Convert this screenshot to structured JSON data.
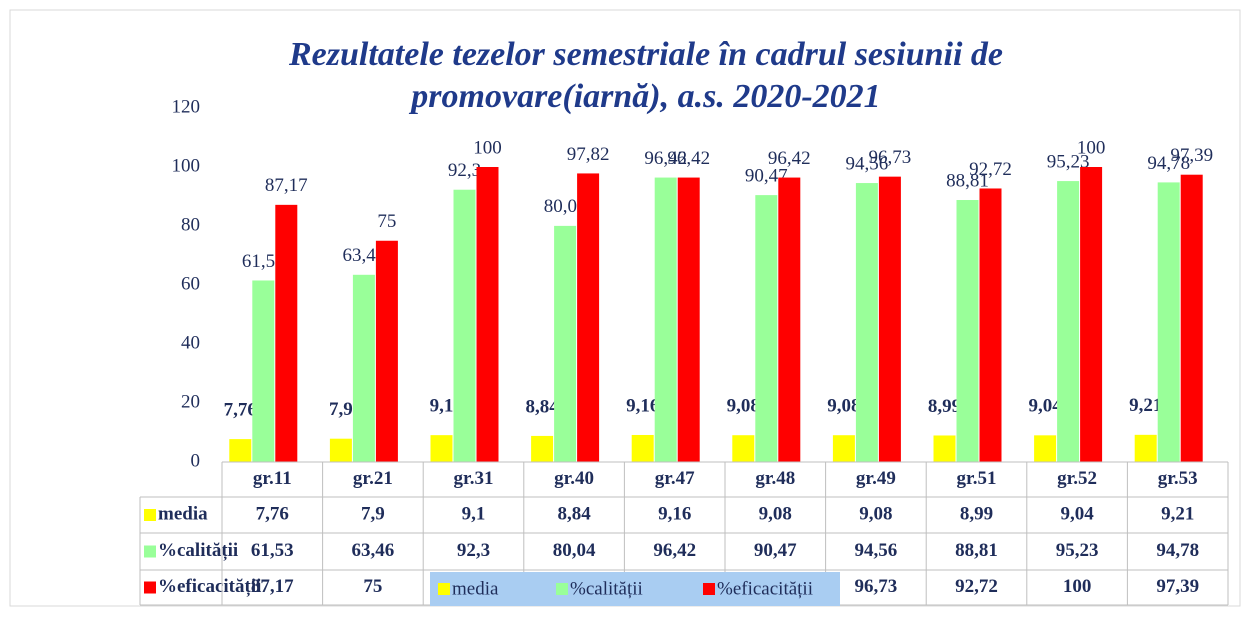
{
  "chart_data": {
    "type": "bar",
    "title": "Rezultatele tezelor semestriale în cadrul sesiunii de promovare(iarnă), a.s. 2020-2021",
    "categories": [
      "gr.11",
      "gr.21",
      "gr.31",
      "gr.40",
      "gr.47",
      "gr.48",
      "gr.49",
      "gr.51",
      "gr.52",
      "gr.53"
    ],
    "series": [
      {
        "name": "media",
        "color": "#ffff00",
        "values": [
          7.76,
          7.9,
          9.1,
          8.84,
          9.16,
          9.08,
          9.08,
          8.99,
          9.04,
          9.21
        ],
        "value_labels": [
          "7,76",
          "7,9",
          "9,1",
          "8,84",
          "9,16",
          "9,08",
          "9,08",
          "8,99",
          "9,04",
          "9,21"
        ]
      },
      {
        "name": "%calității",
        "color": "#99ff99",
        "values": [
          61.53,
          63.46,
          92.3,
          80.04,
          96.42,
          90.47,
          94.56,
          88.81,
          95.23,
          94.78
        ],
        "value_labels": [
          "61,53",
          "63,46",
          "92,3",
          "80,04",
          "96,42",
          "90,47",
          "94,56",
          "88,81",
          "95,23",
          "94,78"
        ]
      },
      {
        "name": "%eficacității",
        "color": "#ff0000",
        "values": [
          87.17,
          75,
          100,
          97.82,
          96.42,
          96.42,
          96.73,
          92.72,
          100,
          97.39
        ],
        "value_labels": [
          "87,17",
          "75",
          "100",
          "97,82",
          "96,42",
          "96,42",
          "96,73",
          "92,72",
          "100",
          "97,39"
        ]
      }
    ],
    "ylim": [
      0,
      120
    ],
    "yticks": [
      0,
      20,
      40,
      60,
      80,
      100,
      120
    ],
    "grid": false,
    "legend": "bottom"
  }
}
